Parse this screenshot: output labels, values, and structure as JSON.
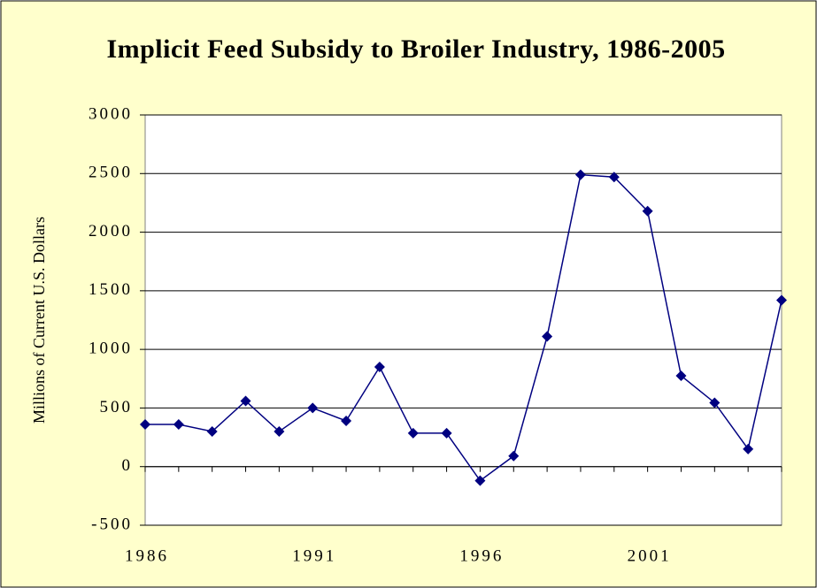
{
  "chart_data": {
    "type": "line",
    "title": "Implicit Feed Subsidy to Broiler Industry, 1986-2005",
    "y_label": "Millions of Current U.S. Dollars",
    "categories": [
      "1986",
      null,
      null,
      null,
      null,
      "1991",
      null,
      null,
      null,
      null,
      "1996",
      null,
      null,
      null,
      null,
      "2001",
      null,
      null,
      null,
      null
    ],
    "series": [
      {
        "name": "Implicit feed subsidy",
        "color": "#000080",
        "values": [
          360,
          360,
          300,
          560,
          300,
          500,
          390,
          850,
          285,
          285,
          -120,
          90,
          1110,
          2490,
          2470,
          2180,
          775,
          545,
          150,
          1420
        ]
      }
    ],
    "ylim": [
      -500,
      3000
    ],
    "yticks": [
      -500,
      0,
      500,
      1000,
      1500,
      2000,
      2500,
      3000
    ],
    "grid": true
  }
}
